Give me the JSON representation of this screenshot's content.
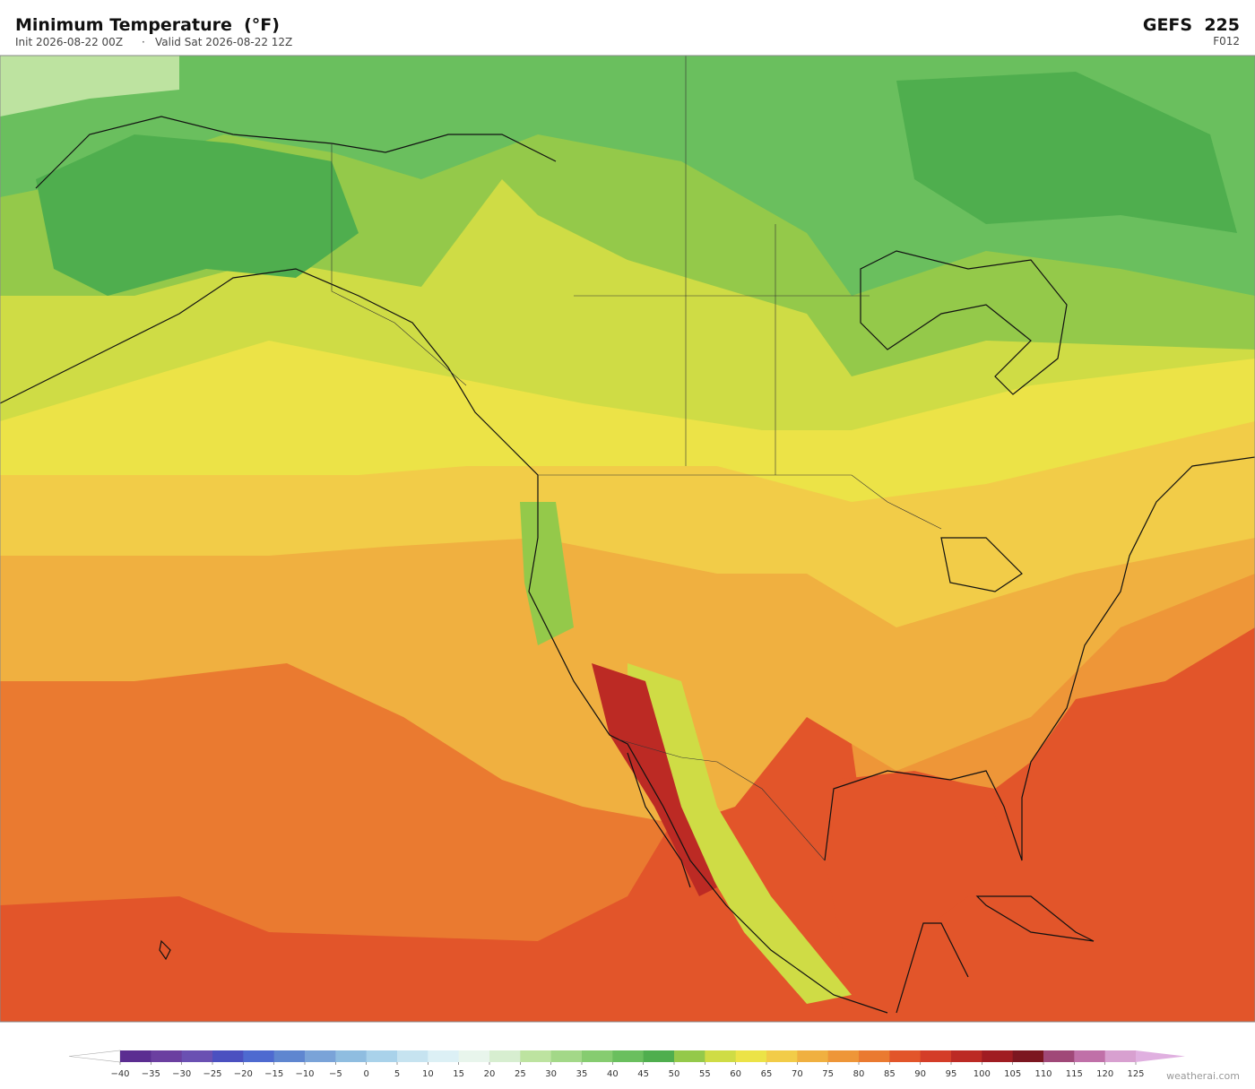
{
  "header": {
    "title": "Minimum Temperature  (°F)",
    "init": "Init 2026-08-22 00Z",
    "separator": "·",
    "valid": "Valid Sat 2026-08-22 12Z",
    "model": "GEFS  225",
    "forecast": "F012"
  },
  "colorbar": {
    "ticks": [
      {
        "value": -40,
        "label": "−40"
      },
      {
        "value": -35,
        "label": "−35"
      },
      {
        "value": -30,
        "label": "−30"
      },
      {
        "value": -25,
        "label": "−25"
      },
      {
        "value": -20,
        "label": "−20"
      },
      {
        "value": -15,
        "label": "−15"
      },
      {
        "value": -10,
        "label": "−10"
      },
      {
        "value": -5,
        "label": "−5"
      },
      0,
      5,
      10,
      15,
      20,
      25,
      30,
      35,
      40,
      45,
      50,
      55,
      60,
      65,
      70,
      75,
      80,
      85,
      90,
      95,
      100,
      105,
      110,
      115,
      120,
      125
    ],
    "colors": [
      "#5b2d91",
      "#6b3fa0",
      "#6a50b2",
      "#4b50c0",
      "#4e6ad0",
      "#5f86d0",
      "#7aa3d8",
      "#8fbde0",
      "#a9d2ea",
      "#c6e3f0",
      "#dcf0f5",
      "#e8f5ec",
      "#d7eed0",
      "#bde3a0",
      "#a3d888",
      "#86cc70",
      "#6abf5e",
      "#4fae4e",
      "#94c94a",
      "#cfdc45",
      "#ece347",
      "#f2cc48",
      "#f0b040",
      "#ee9638",
      "#ea7a30",
      "#e2552a",
      "#d43d28",
      "#bc2a24",
      "#a01c22",
      "#7c1620",
      "#a04878",
      "#c070a8",
      "#d8a0d0"
    ],
    "under_color": "#ffffff",
    "over_color": "#e0b0e0"
  },
  "footer": {
    "credit": "weatherai.com"
  }
}
